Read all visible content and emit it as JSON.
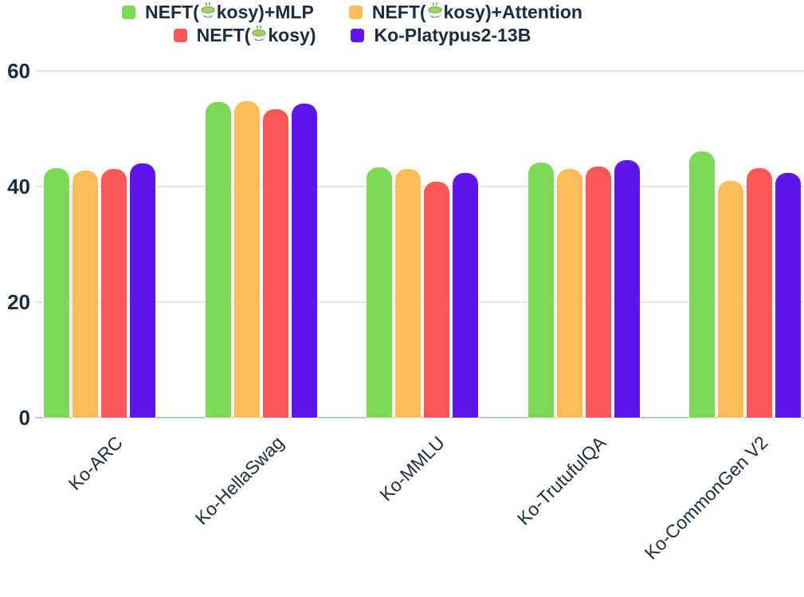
{
  "colors": {
    "text": "#1a2c3e",
    "gridline": "#e0e5ea",
    "baseline": "#b9c4ce",
    "series_green": "#7ed957",
    "series_orange": "#ffbd59",
    "series_red": "#ff5757",
    "series_purple": "#5e17eb"
  },
  "legend": {
    "items": [
      {
        "prefix": "NEFT(",
        "emoji": "🍵",
        "suffix": "kosy)+MLP",
        "color": "#7ed957",
        "row": 0
      },
      {
        "prefix": "NEFT(",
        "emoji": "🍵",
        "suffix": "kosy)+Attention",
        "color": "#ffbd59",
        "row": 0
      },
      {
        "prefix": "NEFT(",
        "emoji": "🍵",
        "suffix": "kosy)",
        "color": "#ff5757",
        "row": 1
      },
      {
        "prefix": "Ko-Platypus2-13B",
        "emoji": "",
        "suffix": "",
        "color": "#5e17eb",
        "row": 1
      }
    ]
  },
  "chart_data": {
    "type": "bar",
    "title": "",
    "xlabel": "",
    "ylabel": "",
    "categories": [
      "Ko-ARC",
      "Ko-HellaSwag",
      "Ko-MMLU",
      "Ko-TrutufulQA",
      "Ko-CommonGen V2"
    ],
    "series": [
      {
        "name": "NEFT(🍵kosy)+MLP",
        "color": "#7ed957",
        "values": [
          43.2,
          54.6,
          43.3,
          44.1,
          46.1
        ]
      },
      {
        "name": "NEFT(🍵kosy)+Attention",
        "color": "#ffbd59",
        "values": [
          42.8,
          54.7,
          43.0,
          43.0,
          41.0
        ]
      },
      {
        "name": "NEFT(🍵kosy)",
        "color": "#ff5757",
        "values": [
          43.1,
          53.4,
          40.9,
          43.5,
          43.2
        ]
      },
      {
        "name": "Ko-Platypus2-13B",
        "color": "#5e17eb",
        "values": [
          44.0,
          54.3,
          42.4,
          44.5,
          42.4
        ]
      }
    ],
    "ylim": [
      0,
      60
    ],
    "yticks": [
      0,
      20,
      40,
      60
    ],
    "grid": true,
    "legend_position": "top-center",
    "xtick_rotation_deg": -45
  }
}
